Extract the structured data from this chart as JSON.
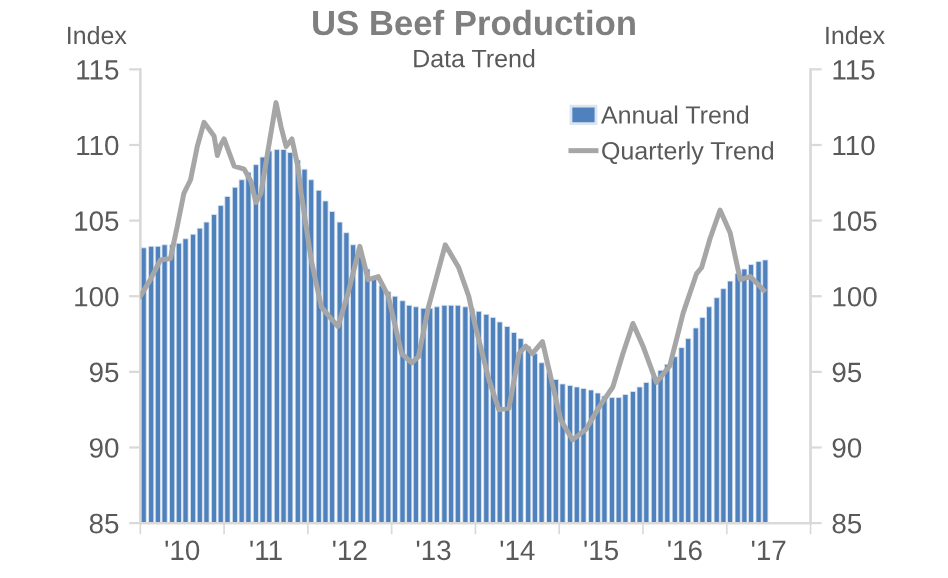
{
  "chart_data": {
    "type": "bar",
    "title": "US Beef Production",
    "subtitle": "Data Trend",
    "ylabel": "Index",
    "y2label": "Index",
    "x": [
      2009.54,
      2009.63,
      2009.71,
      2009.79,
      2009.88,
      2009.96,
      2010.04,
      2010.13,
      2010.21,
      2010.29,
      2010.38,
      2010.46,
      2010.54,
      2010.63,
      2010.71,
      2010.79,
      2010.88,
      2010.96,
      2011.04,
      2011.13,
      2011.21,
      2011.29,
      2011.38,
      2011.46,
      2011.54,
      2011.63,
      2011.71,
      2011.79,
      2011.88,
      2011.96,
      2012.04,
      2012.13,
      2012.21,
      2012.29,
      2012.38,
      2012.46,
      2012.54,
      2012.63,
      2012.71,
      2012.79,
      2012.88,
      2012.96,
      2013.04,
      2013.13,
      2013.21,
      2013.29,
      2013.38,
      2013.46,
      2013.54,
      2013.63,
      2013.71,
      2013.79,
      2013.88,
      2013.96,
      2014.04,
      2014.13,
      2014.21,
      2014.29,
      2014.38,
      2014.46,
      2014.54,
      2014.63,
      2014.71,
      2014.79,
      2014.88,
      2014.96,
      2015.04,
      2015.13,
      2015.21,
      2015.29,
      2015.38,
      2015.46,
      2015.54,
      2015.63,
      2015.71,
      2015.79,
      2015.88,
      2015.96,
      2016.04,
      2016.13,
      2016.21,
      2016.29,
      2016.38,
      2016.46,
      2016.54,
      2016.63,
      2016.71,
      2016.79,
      2016.88,
      2016.96
    ],
    "series": [
      {
        "name": "Annual Trend",
        "color": "#4f81bd",
        "values": [
          103.2,
          103.3,
          103.3,
          103.4,
          103.4,
          103.5,
          103.8,
          104.1,
          104.5,
          104.9,
          105.4,
          106.0,
          106.6,
          107.2,
          107.7,
          108.2,
          108.7,
          109.2,
          109.6,
          109.7,
          109.7,
          109.5,
          109.0,
          108.4,
          107.7,
          107.0,
          106.3,
          105.6,
          104.9,
          104.2,
          103.4,
          102.6,
          101.8,
          101.2,
          100.7,
          100.3,
          100.0,
          99.7,
          99.4,
          99.3,
          99.2,
          99.2,
          99.3,
          99.4,
          99.4,
          99.4,
          99.3,
          99.2,
          99.0,
          98.8,
          98.6,
          98.3,
          98.0,
          97.6,
          97.2,
          96.7,
          96.2,
          95.6,
          95.0,
          94.5,
          94.2,
          94.1,
          94.0,
          93.9,
          93.8,
          93.6,
          93.4,
          93.3,
          93.3,
          93.5,
          93.7,
          94.0,
          94.3,
          94.7,
          95.1,
          95.5,
          96.0,
          96.6,
          97.2,
          97.9,
          98.6,
          99.3,
          99.9,
          100.5,
          101.0,
          101.5,
          101.8,
          102.1,
          102.3,
          102.4
        ]
      },
      {
        "name": "Quarterly Trend",
        "type": "line",
        "color": "#a6a6a6",
        "x": [
          2009.5,
          2009.62,
          2009.74,
          2009.86,
          2009.94,
          2010.02,
          2010.1,
          2010.18,
          2010.26,
          2010.38,
          2010.42,
          2010.46,
          2010.5,
          2010.62,
          2010.74,
          2010.82,
          2010.88,
          2010.94,
          2011.02,
          2011.12,
          2011.18,
          2011.24,
          2011.31,
          2011.38,
          2011.42,
          2011.54,
          2011.66,
          2011.78,
          2011.86,
          2011.98,
          2012.12,
          2012.22,
          2012.34,
          2012.46,
          2012.62,
          2012.74,
          2012.82,
          2012.94,
          2013.14,
          2013.3,
          2013.42,
          2013.5,
          2013.66,
          2013.78,
          2013.9,
          2014.02,
          2014.1,
          2014.18,
          2014.3,
          2014.38,
          2014.52,
          2014.66,
          2014.82,
          2014.98,
          2015.14,
          2015.26,
          2015.38,
          2015.5,
          2015.66,
          2015.82,
          2015.98,
          2016.14,
          2016.2,
          2016.3,
          2016.42,
          2016.54,
          2016.66,
          2016.78,
          2016.94
        ],
        "values": [
          100.0,
          101.1,
          102.4,
          102.5,
          104.6,
          106.8,
          107.7,
          109.9,
          111.5,
          110.6,
          109.3,
          110.0,
          110.4,
          108.6,
          108.4,
          107.6,
          106.2,
          106.8,
          109.5,
          112.8,
          111.2,
          109.9,
          110.4,
          108.6,
          106.8,
          102.4,
          99.3,
          98.5,
          98.0,
          100.2,
          103.3,
          101.1,
          101.3,
          100.0,
          96.2,
          95.6,
          96.0,
          99.3,
          103.4,
          101.9,
          100.0,
          98.0,
          94.5,
          92.5,
          92.6,
          96.2,
          96.7,
          96.2,
          97.0,
          95.1,
          91.8,
          90.5,
          91.2,
          92.7,
          94.0,
          96.2,
          98.2,
          96.7,
          94.3,
          95.4,
          98.9,
          101.5,
          101.9,
          103.8,
          105.7,
          104.2,
          101.1,
          101.3,
          100.4
        ]
      }
    ],
    "xlim": [
      2009.5,
      2017.5
    ],
    "xticks": [
      {
        "value": 2009.5,
        "label": null
      },
      {
        "value": 2010,
        "label": "'10"
      },
      {
        "value": 2010.5,
        "label": null
      },
      {
        "value": 2011,
        "label": "'11"
      },
      {
        "value": 2011.5,
        "label": null
      },
      {
        "value": 2012,
        "label": "'12"
      },
      {
        "value": 2012.5,
        "label": null
      },
      {
        "value": 2013,
        "label": "'13"
      },
      {
        "value": 2013.5,
        "label": null
      },
      {
        "value": 2014,
        "label": "'14"
      },
      {
        "value": 2014.5,
        "label": null
      },
      {
        "value": 2015,
        "label": "'15"
      },
      {
        "value": 2015.5,
        "label": null
      },
      {
        "value": 2016,
        "label": "'16"
      },
      {
        "value": 2016.5,
        "label": null
      },
      {
        "value": 2017,
        "label": "'17"
      },
      {
        "value": 2017.5,
        "label": null
      }
    ],
    "ylim": [
      85,
      115
    ],
    "yticks": [
      85,
      90,
      95,
      100,
      105,
      110,
      115
    ],
    "y2lim": [
      85,
      115
    ],
    "y2ticks": [
      85,
      90,
      95,
      100,
      105,
      110,
      115
    ],
    "grid": false,
    "legend": "top right"
  }
}
